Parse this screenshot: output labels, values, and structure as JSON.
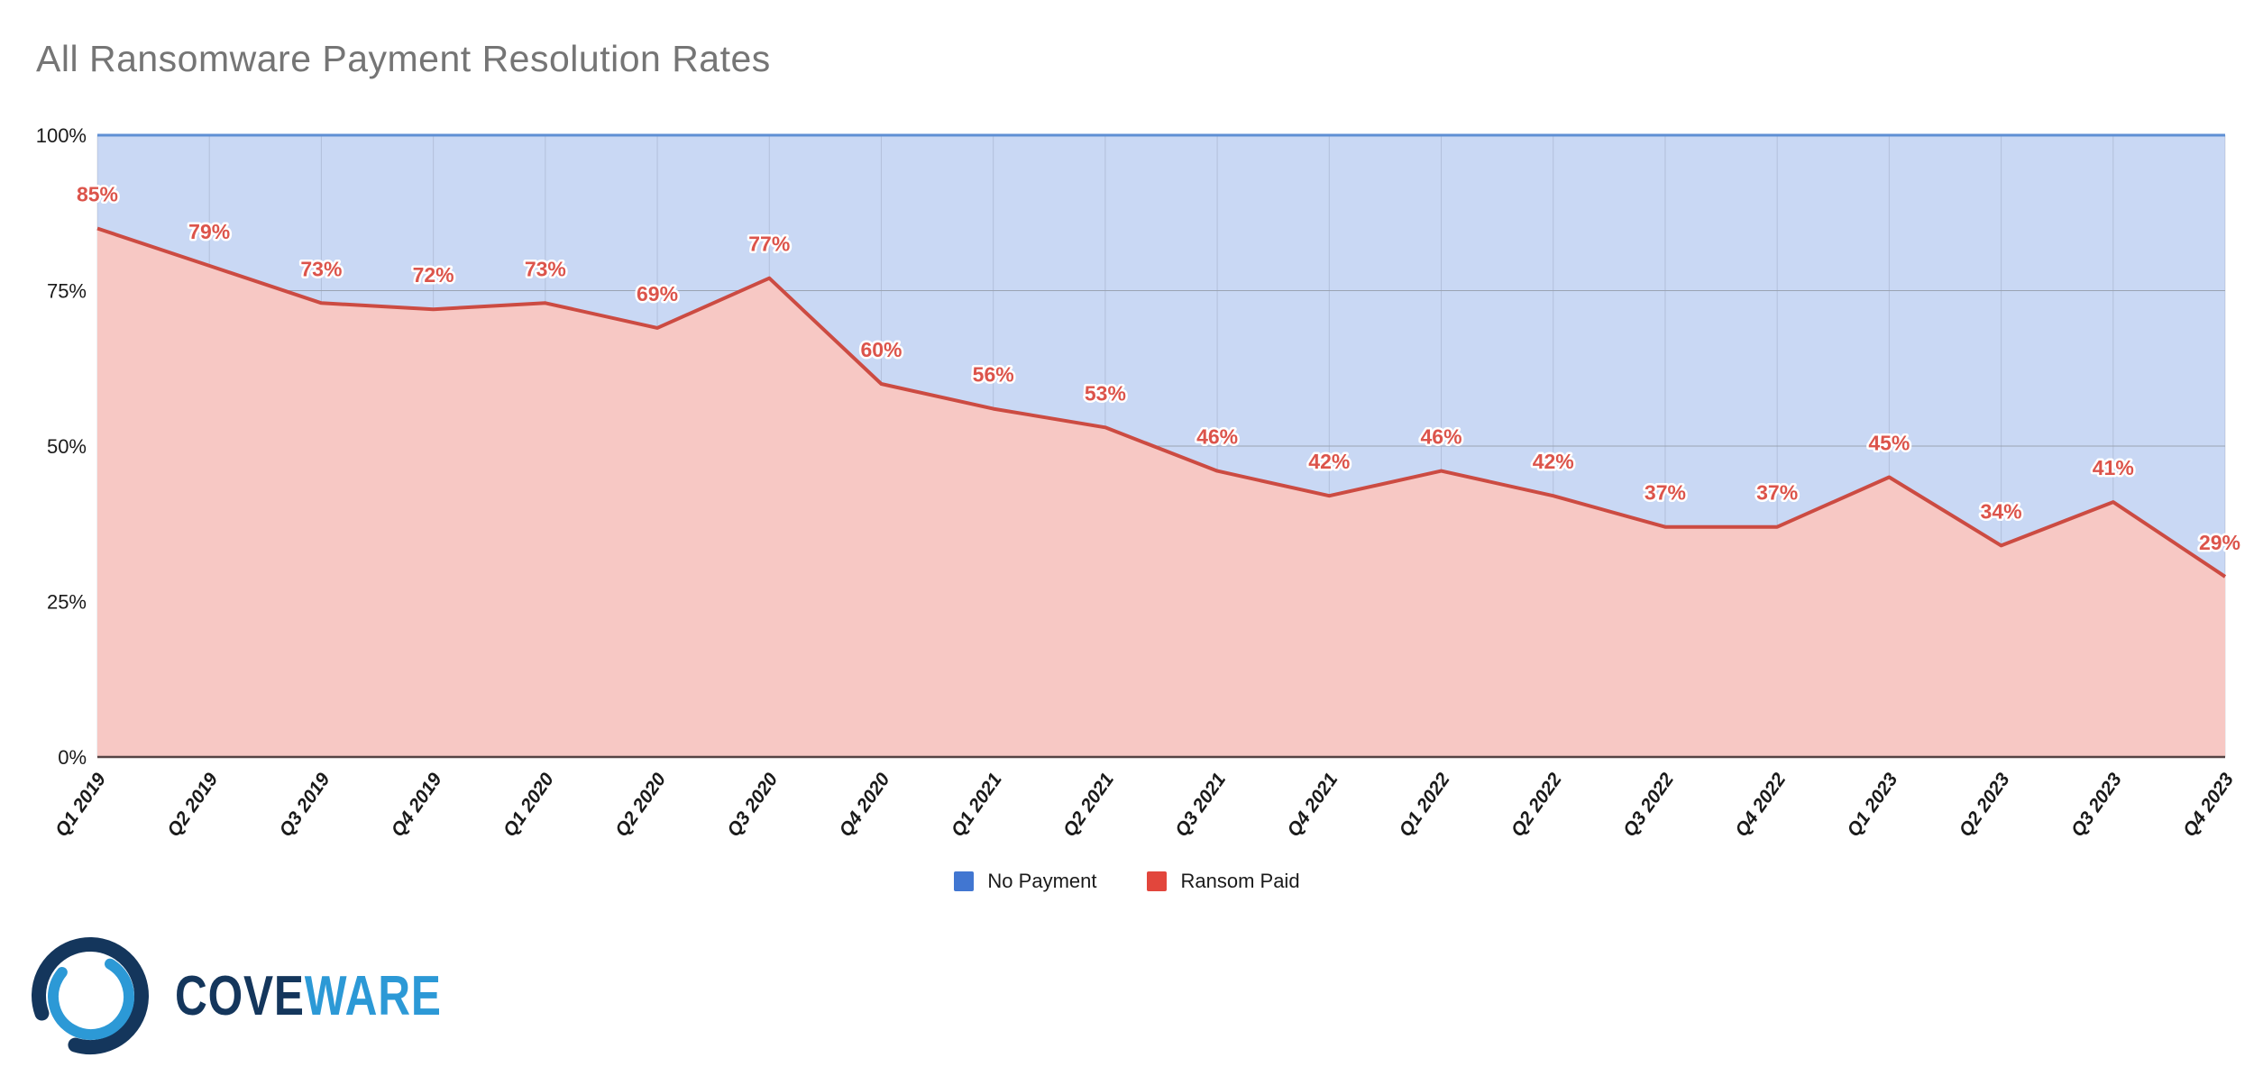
{
  "title": "All Ransomware Payment Resolution Rates",
  "chart_data": {
    "type": "area",
    "stacked": true,
    "total": 100,
    "title": "All Ransomware Payment Resolution Rates",
    "categories": [
      "Q1 2019",
      "Q2 2019",
      "Q3 2019",
      "Q4 2019",
      "Q1 2020",
      "Q2 2020",
      "Q3 2020",
      "Q4 2020",
      "Q1 2021",
      "Q2 2021",
      "Q3 2021",
      "Q4 2021",
      "Q1 2022",
      "Q2 2022",
      "Q3 2022",
      "Q4 2022",
      "Q1 2023",
      "Q2 2023",
      "Q3 2023",
      "Q4 2023"
    ],
    "series": [
      {
        "name": "No Payment",
        "values": [
          15,
          21,
          27,
          28,
          27,
          31,
          23,
          40,
          44,
          47,
          54,
          58,
          54,
          58,
          63,
          63,
          55,
          66,
          59,
          71
        ]
      },
      {
        "name": "Ransom Paid",
        "values": [
          85,
          79,
          73,
          72,
          73,
          69,
          77,
          60,
          56,
          53,
          46,
          42,
          46,
          42,
          37,
          37,
          45,
          34,
          41,
          29
        ]
      }
    ],
    "data_labels": [
      "85%",
      "79%",
      "73%",
      "72%",
      "73%",
      "69%",
      "77%",
      "60%",
      "56%",
      "53%",
      "46%",
      "42%",
      "46%",
      "42%",
      "37%",
      "37%",
      "45%",
      "34%",
      "41%",
      "29%"
    ],
    "yticks": [
      "0%",
      "25%",
      "50%",
      "75%",
      "100%"
    ],
    "ytick_values": [
      0,
      25,
      50,
      75,
      100
    ],
    "ylim": [
      0,
      100
    ],
    "grid": true,
    "legend_position": "bottom"
  },
  "legend": {
    "items": [
      {
        "label": "No Payment",
        "color": "#4176d1"
      },
      {
        "label": "Ransom Paid",
        "color": "#e2463c"
      }
    ]
  },
  "colors": {
    "no_payment_fill": "#c9d8f4",
    "no_payment_line": "#5e8fd4",
    "ransom_fill": "#f7c8c4",
    "ransom_line": "#cc4b42",
    "data_label": "#dc544b",
    "gridline": "#9aa3b2",
    "vertical_gridline": "rgba(100,110,130,0.22)",
    "axis_line": "#554444",
    "tick_text": "#1a1a1a",
    "title_text": "#757575"
  },
  "logo": {
    "text_primary": "COVE",
    "text_secondary": "WARE",
    "primary_color": "#14365c",
    "secondary_color": "#2c99d6"
  }
}
